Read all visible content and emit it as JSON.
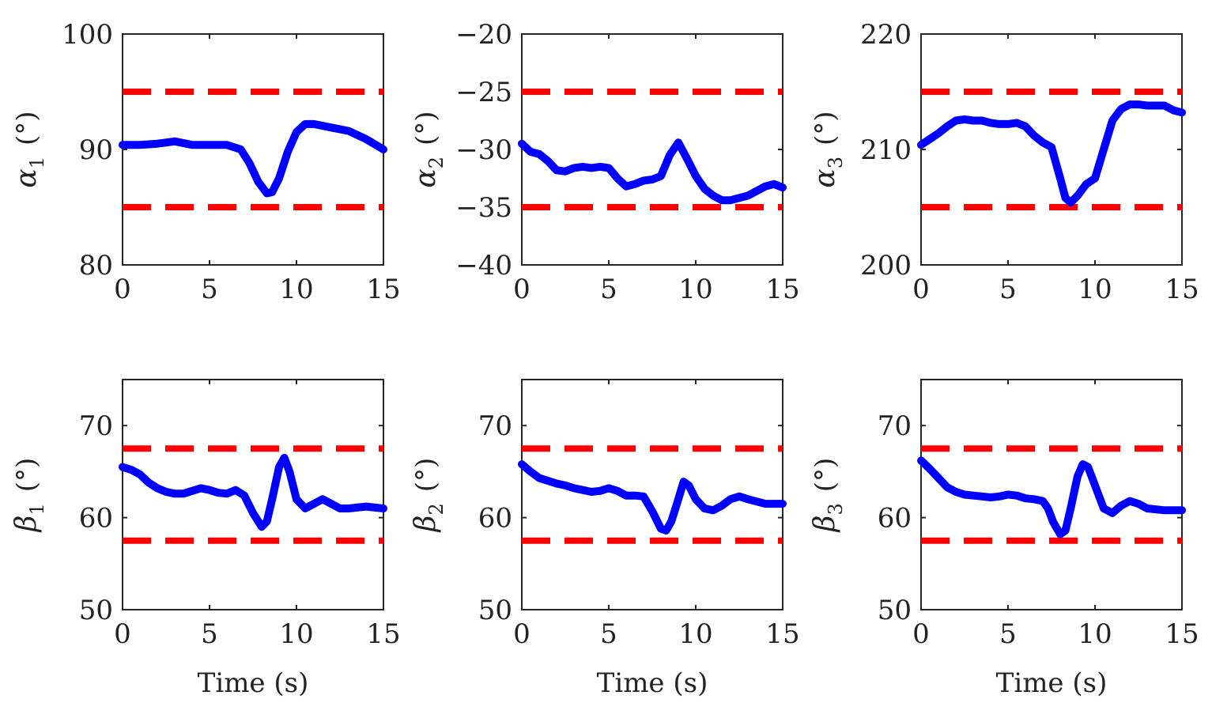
{
  "colors": {
    "series": "#0000ff",
    "limit": "#ff0000",
    "axis": "#262626"
  },
  "chart_data": [
    {
      "type": "line",
      "ylabel_symbol": "α",
      "ylabel_sub": "1",
      "ylabel_unit": "(°)",
      "xlabel": "",
      "xlim": [
        0,
        15
      ],
      "ylim": [
        80,
        100
      ],
      "xticks": [
        0,
        5,
        10,
        15
      ],
      "yticks": [
        80,
        90,
        100
      ],
      "limits": [
        85,
        95
      ],
      "series": [
        {
          "name": "alpha1",
          "x": [
            0,
            1,
            2,
            3,
            4,
            5,
            6,
            6.8,
            7.3,
            7.8,
            8.3,
            8.6,
            9.0,
            9.5,
            10.0,
            10.5,
            11,
            12,
            13,
            14,
            15
          ],
          "y": [
            90.4,
            90.4,
            90.5,
            90.7,
            90.4,
            90.4,
            90.4,
            90.0,
            88.8,
            87.2,
            86.2,
            86.3,
            87.5,
            89.8,
            91.5,
            92.2,
            92.2,
            91.9,
            91.6,
            90.9,
            90.0
          ]
        }
      ]
    },
    {
      "type": "line",
      "ylabel_symbol": "α",
      "ylabel_sub": "2",
      "ylabel_unit": "(°)",
      "xlabel": "",
      "xlim": [
        0,
        15
      ],
      "ylim": [
        -40,
        -20
      ],
      "xticks": [
        0,
        5,
        10,
        15
      ],
      "yticks": [
        -40,
        -35,
        -30,
        -25,
        -20
      ],
      "yticklabels": [
        "−40",
        "−35",
        "−30",
        "−25",
        "−20"
      ],
      "limits": [
        -35,
        -25
      ],
      "series": [
        {
          "name": "alpha2",
          "x": [
            0,
            0.5,
            1,
            1.5,
            2,
            2.5,
            3,
            3.5,
            4,
            4.5,
            5,
            5.5,
            6,
            6.5,
            7,
            7.5,
            8,
            8.5,
            9,
            9.5,
            10,
            10.5,
            11,
            11.5,
            12,
            12.5,
            13,
            13.5,
            14,
            14.5,
            15
          ],
          "y": [
            -29.5,
            -30.2,
            -30.4,
            -31.0,
            -31.8,
            -31.9,
            -31.6,
            -31.5,
            -31.6,
            -31.5,
            -31.6,
            -32.5,
            -33.2,
            -33.0,
            -32.7,
            -32.6,
            -32.3,
            -30.5,
            -29.4,
            -30.8,
            -32.3,
            -33.4,
            -34.0,
            -34.4,
            -34.4,
            -34.2,
            -34.0,
            -33.6,
            -33.2,
            -33.0,
            -33.3
          ]
        }
      ]
    },
    {
      "type": "line",
      "ylabel_symbol": "α",
      "ylabel_sub": "3",
      "ylabel_unit": "(°)",
      "xlabel": "",
      "xlim": [
        0,
        15
      ],
      "ylim": [
        200,
        220
      ],
      "xticks": [
        0,
        5,
        10,
        15
      ],
      "yticks": [
        200,
        210,
        220
      ],
      "limits": [
        205,
        215
      ],
      "series": [
        {
          "name": "alpha3",
          "x": [
            0,
            0.5,
            1,
            1.5,
            2,
            2.5,
            3,
            3.5,
            4,
            4.5,
            5,
            5.5,
            6,
            6.5,
            7,
            7.5,
            8,
            8.3,
            8.6,
            9,
            9.5,
            10,
            10.5,
            11,
            11.5,
            12,
            12.5,
            13,
            13.5,
            14,
            14.5,
            15
          ],
          "y": [
            210.4,
            210.9,
            211.4,
            212.0,
            212.5,
            212.6,
            212.5,
            212.5,
            212.3,
            212.2,
            212.2,
            212.3,
            212.0,
            211.2,
            210.6,
            210.2,
            207.5,
            205.8,
            205.4,
            206.0,
            207.0,
            207.5,
            210.0,
            212.5,
            213.5,
            213.9,
            213.9,
            213.8,
            213.8,
            213.8,
            213.4,
            213.2
          ]
        }
      ]
    },
    {
      "type": "line",
      "ylabel_symbol": "β",
      "ylabel_sub": "1",
      "ylabel_unit": "(°)",
      "xlabel": "Time (s)",
      "xlim": [
        0,
        15
      ],
      "ylim": [
        50,
        75
      ],
      "xticks": [
        0,
        5,
        10,
        15
      ],
      "yticks": [
        50,
        60,
        70
      ],
      "limits": [
        57.5,
        67.5
      ],
      "series": [
        {
          "name": "beta1",
          "x": [
            0,
            0.5,
            1,
            1.5,
            2,
            2.5,
            3,
            3.5,
            4,
            4.5,
            5,
            5.5,
            6,
            6.5,
            7,
            7.5,
            8,
            8.3,
            8.6,
            9,
            9.3,
            9.6,
            10,
            10.5,
            11,
            11.5,
            12,
            12.5,
            13,
            14,
            15
          ],
          "y": [
            65.5,
            65.2,
            64.7,
            63.8,
            63.2,
            62.8,
            62.6,
            62.6,
            62.9,
            63.2,
            63.0,
            62.7,
            62.6,
            63.0,
            62.4,
            60.5,
            59.0,
            59.6,
            62.0,
            65.5,
            66.5,
            65.0,
            62.0,
            61.0,
            61.5,
            62.0,
            61.5,
            61.0,
            61.0,
            61.2,
            61.0
          ]
        }
      ]
    },
    {
      "type": "line",
      "ylabel_symbol": "β",
      "ylabel_sub": "2",
      "ylabel_unit": "(°)",
      "xlabel": "Time (s)",
      "xlim": [
        0,
        15
      ],
      "ylim": [
        50,
        75
      ],
      "xticks": [
        0,
        5,
        10,
        15
      ],
      "yticks": [
        50,
        60,
        70
      ],
      "limits": [
        57.5,
        67.5
      ],
      "series": [
        {
          "name": "beta2",
          "x": [
            0,
            0.5,
            1,
            1.5,
            2,
            2.5,
            3,
            3.5,
            4,
            4.5,
            5,
            5.5,
            6,
            6.5,
            7,
            7.5,
            8,
            8.3,
            8.6,
            9,
            9.3,
            9.6,
            10,
            10.5,
            11,
            11.5,
            12,
            12.5,
            13,
            14,
            15
          ],
          "y": [
            65.8,
            65.0,
            64.3,
            64.0,
            63.7,
            63.5,
            63.2,
            63.0,
            62.8,
            62.9,
            63.2,
            62.9,
            62.4,
            62.4,
            62.3,
            60.7,
            58.8,
            58.6,
            59.6,
            62.0,
            63.9,
            63.5,
            62.0,
            61.0,
            60.8,
            61.3,
            62.0,
            62.3,
            62.0,
            61.5,
            61.5
          ]
        }
      ]
    },
    {
      "type": "line",
      "ylabel_symbol": "β",
      "ylabel_sub": "3",
      "ylabel_unit": "(°)",
      "xlabel": "Time (s)",
      "xlim": [
        0,
        15
      ],
      "ylim": [
        50,
        75
      ],
      "xticks": [
        0,
        5,
        10,
        15
      ],
      "yticks": [
        50,
        60,
        70
      ],
      "limits": [
        57.5,
        67.5
      ],
      "series": [
        {
          "name": "beta3",
          "x": [
            0,
            0.5,
            1,
            1.5,
            2,
            2.5,
            3,
            3.5,
            4,
            4.5,
            5,
            5.5,
            6,
            6.5,
            7,
            7.3,
            7.6,
            8,
            8.3,
            8.6,
            9,
            9.3,
            9.6,
            10,
            10.5,
            11,
            11.5,
            12,
            12.5,
            13,
            14,
            15
          ],
          "y": [
            66.2,
            65.3,
            64.3,
            63.3,
            62.8,
            62.5,
            62.4,
            62.3,
            62.2,
            62.3,
            62.5,
            62.4,
            62.1,
            62.0,
            61.8,
            61.0,
            59.5,
            58.2,
            58.6,
            61.0,
            64.5,
            65.8,
            65.5,
            63.5,
            61.0,
            60.5,
            61.3,
            61.8,
            61.5,
            61.0,
            60.8,
            60.8
          ]
        }
      ]
    }
  ]
}
